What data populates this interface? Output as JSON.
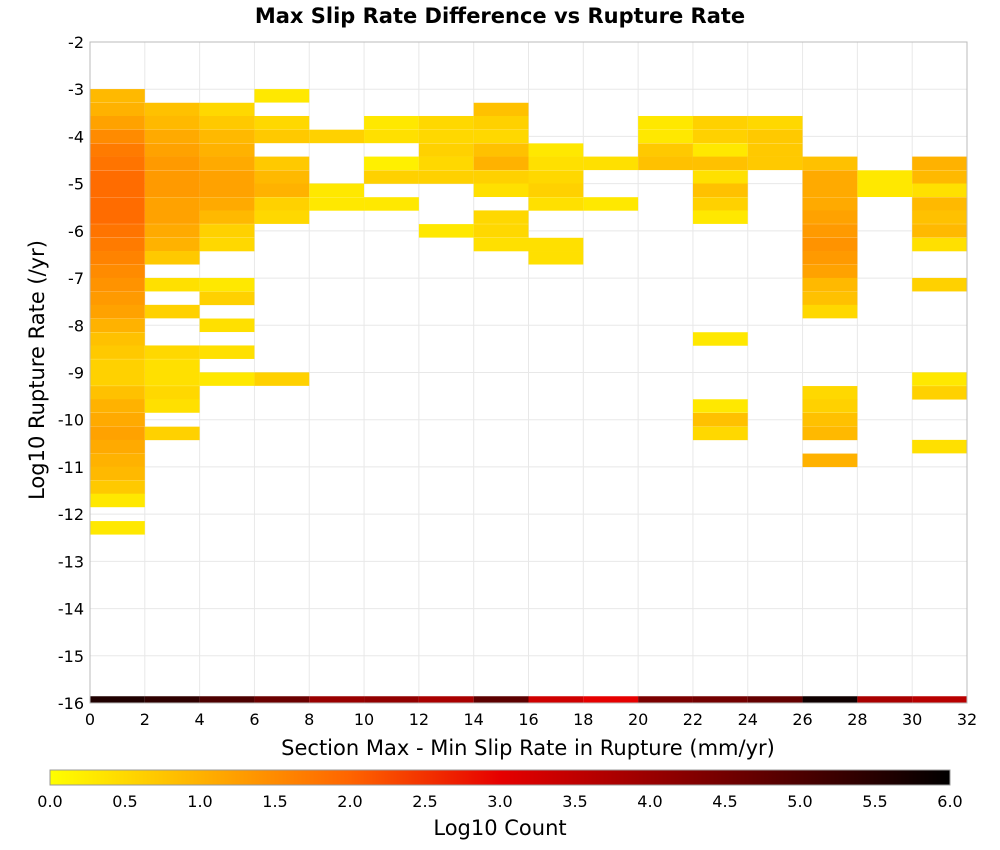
{
  "chart_data": {
    "type": "heatmap",
    "title": "Max Slip Rate Difference vs Rupture Rate",
    "xlabel": "Section Max - Min Slip Rate in Rupture (mm/yr)",
    "ylabel": "Log10 Rupture Rate (/yr)",
    "xlim": [
      0,
      32
    ],
    "ylim": [
      -16,
      -2
    ],
    "x_bin_width": 2,
    "y_bin_height": 0.286,
    "grid": true,
    "x_ticks": [
      "0",
      "2",
      "4",
      "6",
      "8",
      "10",
      "12",
      "14",
      "16",
      "18",
      "20",
      "22",
      "24",
      "26",
      "28",
      "30",
      "32"
    ],
    "y_ticks": [
      "-2",
      "-3",
      "-4",
      "-5",
      "-6",
      "-7",
      "-8",
      "-9",
      "-10",
      "-11",
      "-12",
      "-13",
      "-14",
      "-15",
      "-16"
    ],
    "colorbar": {
      "label": "Log10 Count",
      "range": [
        0.0,
        6.0
      ],
      "ticks": [
        "0.0",
        "0.5",
        "1.0",
        "1.5",
        "2.0",
        "2.5",
        "3.0",
        "3.5",
        "4.0",
        "4.5",
        "5.0",
        "5.5",
        "6.0"
      ],
      "colors": [
        "#ffff00",
        "#ff6400",
        "#e60000",
        "#000000"
      ]
    },
    "cells": [
      [
        0,
        -3.14,
        0.9
      ],
      [
        0,
        -3.43,
        1.0
      ],
      [
        0,
        -3.71,
        1.2
      ],
      [
        0,
        -4.0,
        1.5
      ],
      [
        0,
        -4.29,
        1.7
      ],
      [
        0,
        -4.57,
        1.8
      ],
      [
        0,
        -4.86,
        1.9
      ],
      [
        0,
        -5.14,
        1.9
      ],
      [
        0,
        -5.43,
        1.9
      ],
      [
        0,
        -5.71,
        1.9
      ],
      [
        0,
        -6.0,
        1.8
      ],
      [
        0,
        -6.29,
        1.7
      ],
      [
        0,
        -6.57,
        1.6
      ],
      [
        0,
        -6.86,
        1.5
      ],
      [
        0,
        -7.14,
        1.4
      ],
      [
        0,
        -7.43,
        1.3
      ],
      [
        0,
        -7.71,
        1.2
      ],
      [
        0,
        -8.0,
        1.0
      ],
      [
        0,
        -8.29,
        0.8
      ],
      [
        0,
        -8.57,
        0.7
      ],
      [
        0,
        -8.86,
        0.6
      ],
      [
        0,
        -9.14,
        0.6
      ],
      [
        0,
        -9.43,
        0.8
      ],
      [
        0,
        -9.71,
        1.0
      ],
      [
        0,
        -10.0,
        1.1
      ],
      [
        0,
        -10.29,
        1.2
      ],
      [
        0,
        -10.57,
        1.1
      ],
      [
        0,
        -10.86,
        1.0
      ],
      [
        0,
        -11.14,
        0.9
      ],
      [
        0,
        -11.43,
        0.7
      ],
      [
        0,
        -11.71,
        0.3
      ],
      [
        0,
        -12.29,
        0.3
      ],
      [
        2,
        -3.43,
        0.8
      ],
      [
        2,
        -3.71,
        0.9
      ],
      [
        2,
        -4.0,
        1.1
      ],
      [
        2,
        -4.29,
        1.2
      ],
      [
        2,
        -4.57,
        1.3
      ],
      [
        2,
        -4.86,
        1.3
      ],
      [
        2,
        -5.14,
        1.3
      ],
      [
        2,
        -5.43,
        1.2
      ],
      [
        2,
        -5.71,
        1.2
      ],
      [
        2,
        -6.0,
        1.1
      ],
      [
        2,
        -6.29,
        1.0
      ],
      [
        2,
        -6.57,
        0.7
      ],
      [
        2,
        -7.14,
        0.4
      ],
      [
        2,
        -7.71,
        0.6
      ],
      [
        2,
        -8.57,
        0.5
      ],
      [
        2,
        -8.86,
        0.4
      ],
      [
        2,
        -9.14,
        0.4
      ],
      [
        2,
        -9.43,
        0.5
      ],
      [
        2,
        -9.71,
        0.4
      ],
      [
        2,
        -10.29,
        0.6
      ],
      [
        4,
        -3.43,
        0.5
      ],
      [
        4,
        -3.71,
        0.7
      ],
      [
        4,
        -4.0,
        0.9
      ],
      [
        4,
        -4.29,
        1.0
      ],
      [
        4,
        -4.57,
        1.1
      ],
      [
        4,
        -4.86,
        1.2
      ],
      [
        4,
        -5.14,
        1.2
      ],
      [
        4,
        -5.43,
        1.1
      ],
      [
        4,
        -5.71,
        0.9
      ],
      [
        4,
        -6.0,
        0.6
      ],
      [
        4,
        -6.29,
        0.5
      ],
      [
        4,
        -7.14,
        0.3
      ],
      [
        4,
        -7.43,
        0.6
      ],
      [
        4,
        -8.0,
        0.4
      ],
      [
        4,
        -8.57,
        0.4
      ],
      [
        4,
        -9.14,
        0.3
      ],
      [
        6,
        -3.14,
        0.3
      ],
      [
        6,
        -3.71,
        0.5
      ],
      [
        6,
        -4.0,
        0.7
      ],
      [
        6,
        -4.57,
        0.7
      ],
      [
        6,
        -4.86,
        0.9
      ],
      [
        6,
        -5.14,
        1.0
      ],
      [
        6,
        -5.43,
        0.6
      ],
      [
        6,
        -5.71,
        0.5
      ],
      [
        6,
        -9.14,
        0.6
      ],
      [
        8,
        -4.0,
        0.6
      ],
      [
        8,
        -5.14,
        0.3
      ],
      [
        8,
        -5.43,
        0.3
      ],
      [
        10,
        -4.0,
        0.4
      ],
      [
        10,
        -3.71,
        0.3
      ],
      [
        10,
        -4.57,
        0.2
      ],
      [
        10,
        -4.86,
        0.6
      ],
      [
        10,
        -5.43,
        0.3
      ],
      [
        12,
        -3.71,
        0.5
      ],
      [
        12,
        -4.0,
        0.5
      ],
      [
        12,
        -4.29,
        0.6
      ],
      [
        12,
        -4.57,
        0.5
      ],
      [
        12,
        -4.86,
        0.6
      ],
      [
        12,
        -6.0,
        0.3
      ],
      [
        14,
        -3.43,
        0.8
      ],
      [
        14,
        -3.71,
        0.6
      ],
      [
        14,
        -4.0,
        0.5
      ],
      [
        14,
        -4.29,
        0.8
      ],
      [
        14,
        -4.57,
        1.0
      ],
      [
        14,
        -4.86,
        0.6
      ],
      [
        14,
        -5.14,
        0.4
      ],
      [
        14,
        -5.71,
        0.5
      ],
      [
        14,
        -6.0,
        0.5
      ],
      [
        14,
        -6.29,
        0.4
      ],
      [
        16,
        -4.29,
        0.3
      ],
      [
        16,
        -4.57,
        0.4
      ],
      [
        16,
        -4.86,
        0.5
      ],
      [
        16,
        -5.14,
        0.6
      ],
      [
        16,
        -5.43,
        0.4
      ],
      [
        16,
        -6.29,
        0.4
      ],
      [
        16,
        -6.57,
        0.4
      ],
      [
        18,
        -4.57,
        0.4
      ],
      [
        18,
        -5.43,
        0.3
      ],
      [
        20,
        -3.71,
        0.3
      ],
      [
        20,
        -4.0,
        0.3
      ],
      [
        20,
        -4.29,
        0.7
      ],
      [
        20,
        -4.57,
        0.8
      ],
      [
        22,
        -3.71,
        0.6
      ],
      [
        22,
        -4.0,
        0.6
      ],
      [
        22,
        -4.29,
        0.3
      ],
      [
        22,
        -4.57,
        0.8
      ],
      [
        22,
        -4.86,
        0.4
      ],
      [
        22,
        -5.14,
        0.8
      ],
      [
        22,
        -5.43,
        0.6
      ],
      [
        22,
        -5.71,
        0.3
      ],
      [
        22,
        -8.29,
        0.3
      ],
      [
        22,
        -9.71,
        0.3
      ],
      [
        22,
        -10.0,
        0.8
      ],
      [
        22,
        -10.29,
        0.5
      ],
      [
        24,
        -3.71,
        0.5
      ],
      [
        24,
        -4.0,
        0.7
      ],
      [
        24,
        -4.29,
        0.7
      ],
      [
        24,
        -4.57,
        0.7
      ],
      [
        26,
        -4.57,
        0.8
      ],
      [
        26,
        -4.86,
        1.1
      ],
      [
        26,
        -5.14,
        1.1
      ],
      [
        26,
        -5.43,
        1.1
      ],
      [
        26,
        -5.71,
        1.2
      ],
      [
        26,
        -6.0,
        1.3
      ],
      [
        26,
        -6.29,
        1.4
      ],
      [
        26,
        -6.57,
        1.3
      ],
      [
        26,
        -6.86,
        1.2
      ],
      [
        26,
        -7.14,
        0.9
      ],
      [
        26,
        -7.43,
        0.8
      ],
      [
        26,
        -7.71,
        0.5
      ],
      [
        26,
        -9.43,
        0.5
      ],
      [
        26,
        -9.71,
        0.6
      ],
      [
        26,
        -10.0,
        0.8
      ],
      [
        26,
        -10.29,
        0.9
      ],
      [
        26,
        -10.86,
        1.0
      ],
      [
        28,
        -4.86,
        0.3
      ],
      [
        28,
        -5.14,
        0.3
      ],
      [
        30,
        -4.57,
        1.0
      ],
      [
        30,
        -4.86,
        0.9
      ],
      [
        30,
        -5.14,
        0.4
      ],
      [
        30,
        -5.43,
        0.9
      ],
      [
        30,
        -5.71,
        0.8
      ],
      [
        30,
        -6.0,
        0.9
      ],
      [
        30,
        -6.29,
        0.4
      ],
      [
        30,
        -7.14,
        0.6
      ],
      [
        30,
        -9.14,
        0.3
      ],
      [
        30,
        -9.43,
        0.6
      ],
      [
        30,
        -10.57,
        0.4
      ],
      [
        0,
        -16.0,
        5.6
      ],
      [
        2,
        -16.0,
        5.4
      ],
      [
        4,
        -16.0,
        5.0
      ],
      [
        6,
        -16.0,
        4.6
      ],
      [
        8,
        -16.0,
        4.0
      ],
      [
        10,
        -16.0,
        4.1
      ],
      [
        12,
        -16.0,
        3.8
      ],
      [
        14,
        -16.0,
        4.8
      ],
      [
        16,
        -16.0,
        3.3
      ],
      [
        18,
        -16.0,
        3.0
      ],
      [
        20,
        -16.0,
        4.4
      ],
      [
        22,
        -16.0,
        4.5
      ],
      [
        24,
        -16.0,
        4.7
      ],
      [
        26,
        -16.0,
        5.8
      ],
      [
        28,
        -16.0,
        3.8
      ],
      [
        30,
        -16.0,
        3.6
      ]
    ]
  }
}
